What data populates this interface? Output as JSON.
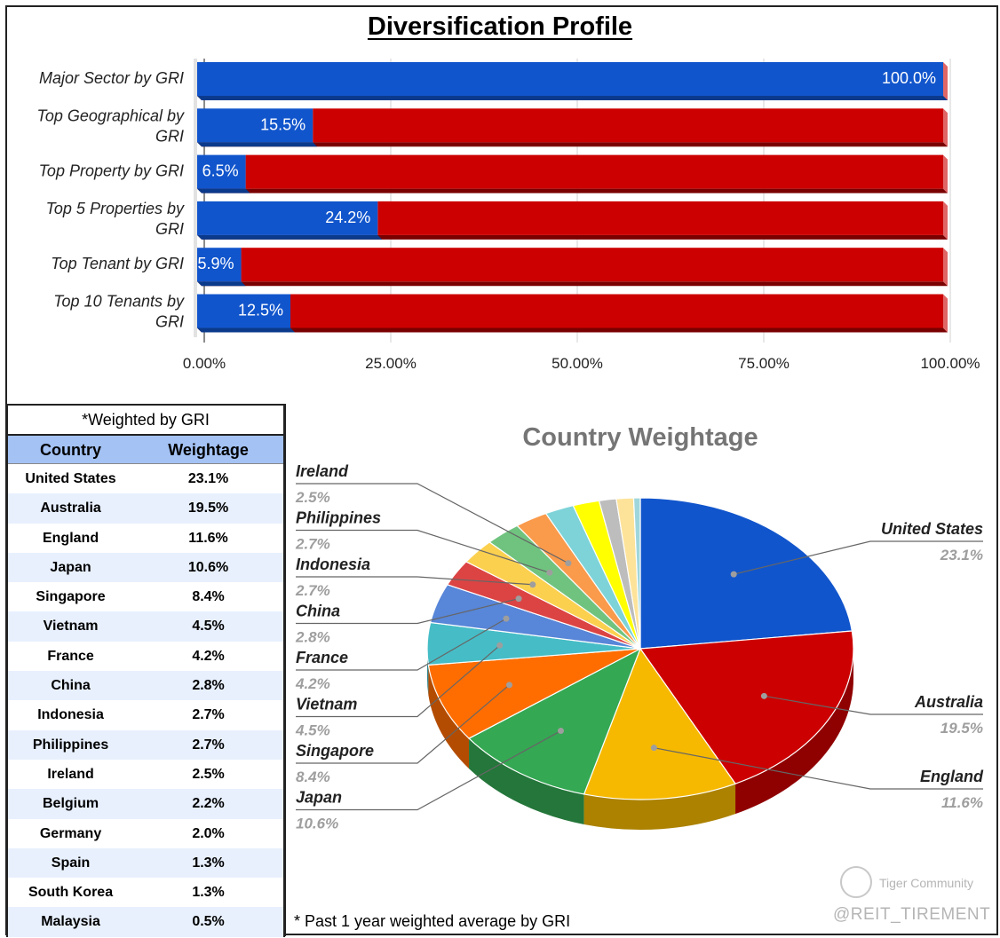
{
  "title": "Diversification Profile",
  "chart_data": [
    {
      "type": "bar",
      "orientation": "horizontal",
      "stacked": true,
      "categories": [
        "Major Sector by GRI",
        "Top Geographical by GRI",
        "Top Property by GRI",
        "Top 5 Properties by GRI",
        "Top Tenant by GRI",
        "Top 10 Tenants by GRI"
      ],
      "category_lines": [
        [
          "Major Sector by GRI"
        ],
        [
          "Top Geographical by",
          "GRI"
        ],
        [
          "Top Property by GRI"
        ],
        [
          "Top 5 Properties by",
          "GRI"
        ],
        [
          "Top Tenant by GRI"
        ],
        [
          "Top 10 Tenants by",
          "GRI"
        ]
      ],
      "values": [
        100.0,
        15.5,
        6.5,
        24.2,
        5.9,
        12.5
      ],
      "data_labels": [
        "100.0%",
        "15.5%",
        "6.5%",
        "24.2%",
        "5.9%",
        "12.5%"
      ],
      "xlim": [
        0,
        100
      ],
      "x_ticks": [
        0,
        25,
        50,
        75,
        100
      ],
      "x_tick_labels": [
        "0.00%",
        "25.00%",
        "50.00%",
        "75.00%",
        "100.00%"
      ],
      "colors": {
        "value": "#1155cc",
        "remainder": "#cc0000"
      },
      "grid": true
    },
    {
      "type": "pie",
      "style": "3d",
      "title": "Country Weightage",
      "categories": [
        "United States",
        "Australia",
        "England",
        "Japan",
        "Singapore",
        "Vietnam",
        "France",
        "China",
        "Indonesia",
        "Philippines",
        "Ireland",
        "Belgium",
        "Germany",
        "Spain",
        "South Korea",
        "Malaysia"
      ],
      "values": [
        23.1,
        19.5,
        11.6,
        10.6,
        8.4,
        4.5,
        4.2,
        2.8,
        2.7,
        2.7,
        2.5,
        2.2,
        2.0,
        1.3,
        1.3,
        0.5
      ],
      "value_labels": [
        "23.1%",
        "19.5%",
        "11.6%",
        "10.6%",
        "8.4%",
        "4.5%",
        "4.2%",
        "2.8%",
        "2.7%",
        "2.7%",
        "2.5%",
        "2.2%",
        "2.0%",
        "1.3%",
        "1.3%",
        "0.5%"
      ],
      "labeled": [
        "United States",
        "Australia",
        "England",
        "Japan",
        "Singapore",
        "Vietnam",
        "France",
        "China",
        "Indonesia",
        "Philippines",
        "Ireland"
      ],
      "colors": [
        "#1155cc",
        "#cc0000",
        "#f6b900",
        "#34a853",
        "#ff6d00",
        "#46bdc6",
        "#5886d8",
        "#dc4444",
        "#fcd04f",
        "#70c37f",
        "#fa9a4b",
        "#7dd3d8",
        "#ffff00",
        "#bdbdbd",
        "#fde39a",
        "#9fd6dc"
      ]
    }
  ],
  "table": {
    "caption": "*Weighted by GRI",
    "headers": [
      "Country",
      "Weightage"
    ],
    "rows": [
      [
        "United States",
        "23.1%"
      ],
      [
        "Australia",
        "19.5%"
      ],
      [
        "England",
        "11.6%"
      ],
      [
        "Japan",
        "10.6%"
      ],
      [
        "Singapore",
        "8.4%"
      ],
      [
        "Vietnam",
        "4.5%"
      ],
      [
        "France",
        "4.2%"
      ],
      [
        "China",
        "2.8%"
      ],
      [
        "Indonesia",
        "2.7%"
      ],
      [
        "Philippines",
        "2.7%"
      ],
      [
        "Ireland",
        "2.5%"
      ],
      [
        "Belgium",
        "2.2%"
      ],
      [
        "Germany",
        "2.0%"
      ],
      [
        "Spain",
        "1.3%"
      ],
      [
        "South Korea",
        "1.3%"
      ],
      [
        "Malaysia",
        "0.5%"
      ]
    ]
  },
  "footnote": "* Past 1 year weighted average by GRI",
  "watermark": "@REIT_TIREMENT",
  "brand": "Tiger Community"
}
